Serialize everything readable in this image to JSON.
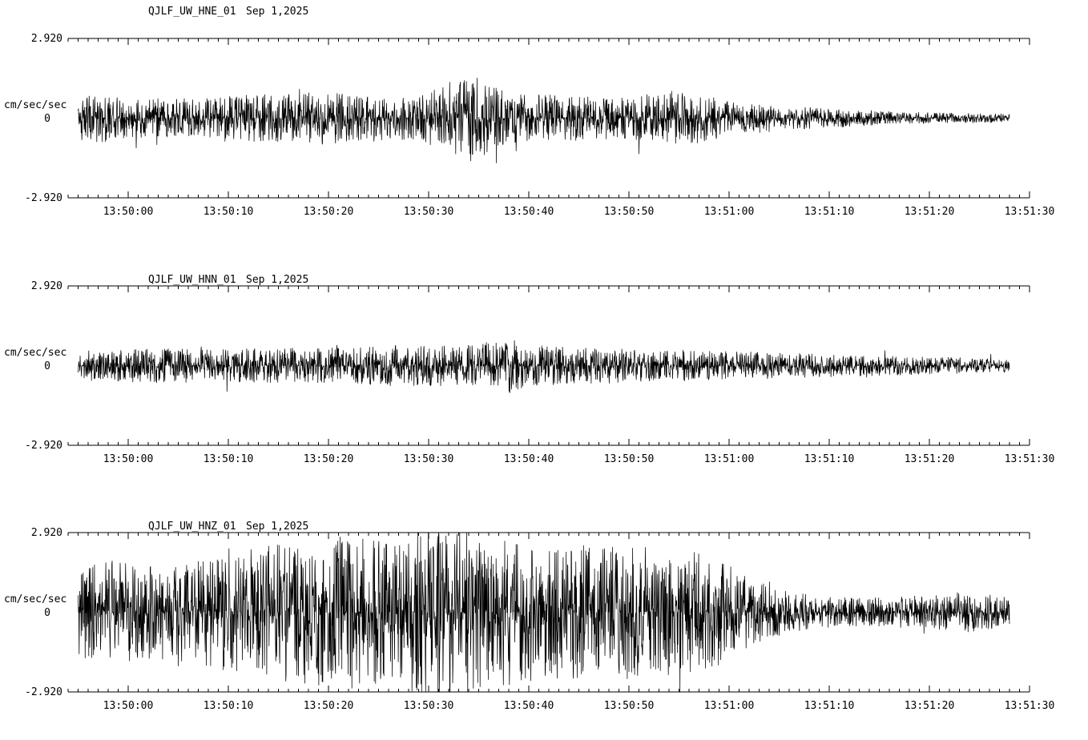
{
  "page": {
    "background": "#ffffff",
    "foreground": "#000000"
  },
  "chart_data": [
    {
      "type": "line",
      "subtype": "seismogram-waveform",
      "station": "QJLF_UW_HNE_01",
      "date": "Sep 1,2025",
      "ylabel": "cm/sec/sec",
      "ylim": [
        -2.92,
        2.92
      ],
      "ytick_labels": [
        "2.920",
        "0",
        "-2.920"
      ],
      "x_ticks": [
        "13:50:00",
        "13:50:10",
        "13:50:20",
        "13:50:30",
        "13:50:40",
        "13:50:50",
        "13:51:00",
        "13:51:10",
        "13:51:20",
        "13:51:30"
      ],
      "x_axis": {
        "span_seconds": 96,
        "first_tick_offset_s": 6,
        "major_interval_s": 10,
        "minor_interval_s": 1
      },
      "grid": false,
      "legend": false,
      "noise_seed": 11,
      "envelope": {
        "t": [
          1,
          3,
          6,
          10,
          14,
          18,
          22,
          26,
          30,
          34,
          38,
          40,
          42,
          44,
          48,
          52,
          56,
          60,
          63,
          66,
          69,
          72,
          76,
          80,
          85,
          90,
          94
        ],
        "amp": [
          0.75,
          0.85,
          0.7,
          0.65,
          0.7,
          0.8,
          0.85,
          0.95,
          0.8,
          0.75,
          1.1,
          1.5,
          1.2,
          0.85,
          0.8,
          0.75,
          0.7,
          0.95,
          0.85,
          0.6,
          0.5,
          0.42,
          0.34,
          0.27,
          0.2,
          0.17,
          0.15
        ]
      }
    },
    {
      "type": "line",
      "subtype": "seismogram-waveform",
      "station": "QJLF_UW_HNN_01",
      "date": "Sep 1,2025",
      "ylabel": "cm/sec/sec",
      "ylim": [
        -2.92,
        2.92
      ],
      "ytick_labels": [
        "2.920",
        "0",
        "-2.920"
      ],
      "x_ticks": [
        "13:50:00",
        "13:50:10",
        "13:50:20",
        "13:50:30",
        "13:50:40",
        "13:50:50",
        "13:51:00",
        "13:51:10",
        "13:51:20",
        "13:51:30"
      ],
      "x_axis": {
        "span_seconds": 96,
        "first_tick_offset_s": 6,
        "major_interval_s": 10,
        "minor_interval_s": 1
      },
      "grid": false,
      "legend": false,
      "noise_seed": 22,
      "envelope": {
        "t": [
          1,
          5,
          10,
          15,
          20,
          25,
          30,
          35,
          40,
          44,
          46,
          50,
          55,
          60,
          65,
          70,
          75,
          80,
          85,
          90,
          94
        ],
        "amp": [
          0.5,
          0.55,
          0.6,
          0.55,
          0.6,
          0.6,
          0.65,
          0.7,
          0.7,
          0.95,
          0.7,
          0.65,
          0.6,
          0.55,
          0.5,
          0.45,
          0.4,
          0.35,
          0.32,
          0.28,
          0.22
        ]
      }
    },
    {
      "type": "line",
      "subtype": "seismogram-waveform",
      "station": "QJLF_UW_HNZ_01",
      "date": "Sep 1,2025",
      "ylabel": "cm/sec/sec",
      "ylim": [
        -2.92,
        2.92
      ],
      "ytick_labels": [
        "2.920",
        "0",
        "-2.920"
      ],
      "x_ticks": [
        "13:50:00",
        "13:50:10",
        "13:50:20",
        "13:50:30",
        "13:50:40",
        "13:50:50",
        "13:51:00",
        "13:51:10",
        "13:51:20",
        "13:51:30"
      ],
      "x_axis": {
        "span_seconds": 96,
        "first_tick_offset_s": 6,
        "major_interval_s": 10,
        "minor_interval_s": 1
      },
      "grid": false,
      "legend": false,
      "noise_seed": 33,
      "envelope": {
        "t": [
          1,
          4,
          8,
          12,
          16,
          20,
          24,
          28,
          32,
          35,
          38,
          41,
          44,
          47,
          50,
          53,
          56,
          59,
          62,
          65,
          68,
          71,
          74,
          78,
          82,
          86,
          89,
          92,
          94
        ],
        "amp": [
          1.5,
          1.8,
          1.6,
          1.7,
          2.0,
          2.3,
          2.5,
          2.6,
          2.4,
          2.8,
          2.9,
          2.6,
          2.5,
          2.3,
          2.4,
          2.2,
          2.3,
          2.4,
          2.1,
          1.8,
          1.2,
          0.8,
          0.6,
          0.5,
          0.5,
          0.6,
          0.7,
          0.6,
          0.5
        ]
      }
    }
  ]
}
